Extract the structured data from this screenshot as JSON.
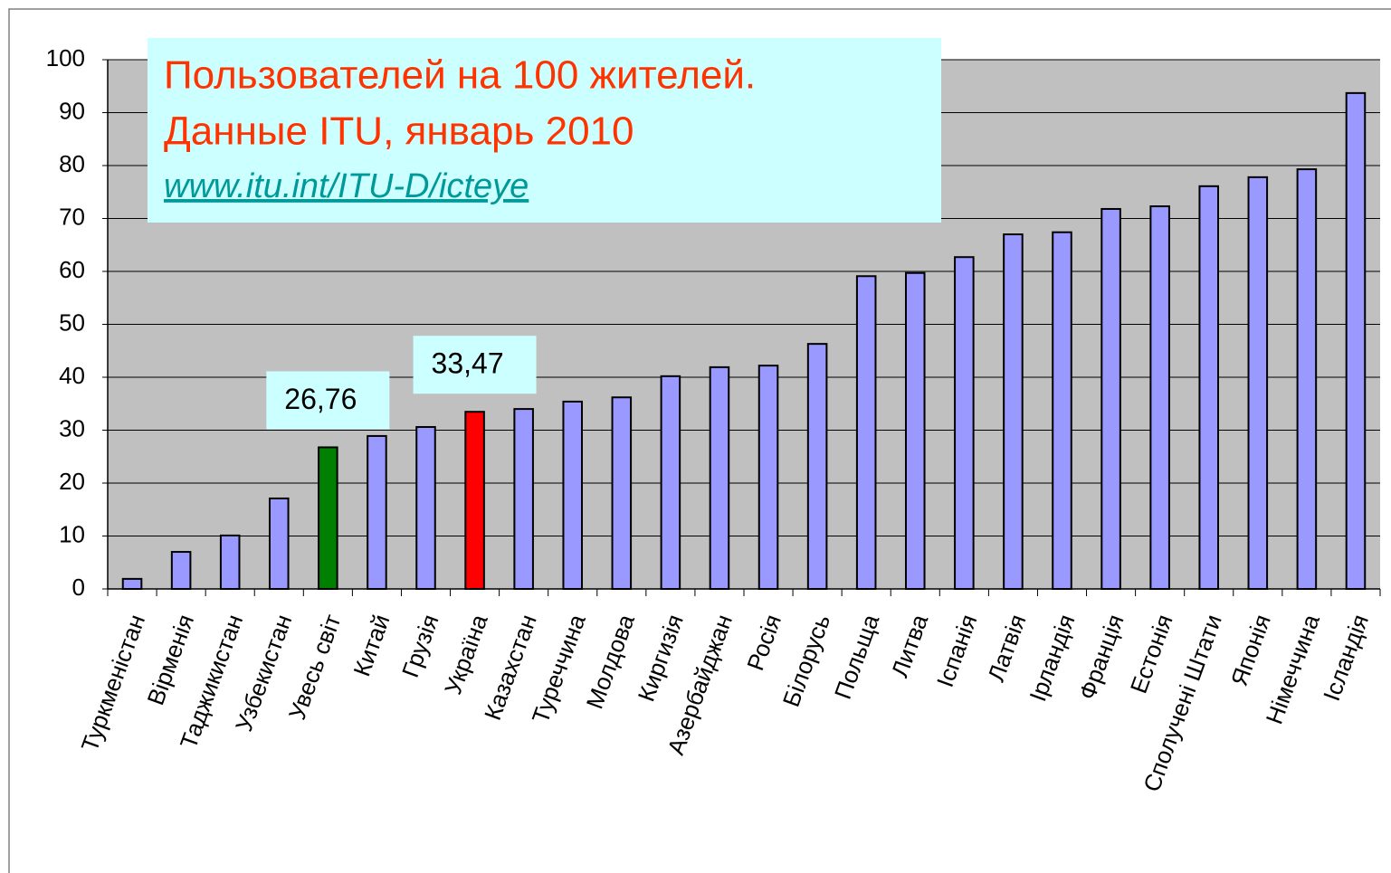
{
  "chart_data": {
    "type": "bar",
    "title": "Пользователей на 100 жителей.",
    "subtitle": "Данные ITU, январь 2010",
    "source": "www.itu.int/ITU-D/icteye",
    "categories": [
      "Туркменістан",
      "Вірменія",
      "Таджикистан",
      "Узбекистан",
      "Увесь світ",
      "Китай",
      "Грузія",
      "Україна",
      "Казахстан",
      "Туреччина",
      "Молдова",
      "Киргизія",
      "Азербайджан",
      "Росія",
      "Білорусь",
      "Польща",
      "Литва",
      "Іспанія",
      "Латвія",
      "Ірландія",
      "Франція",
      "Естонія",
      "Сполучені Штати",
      "Японія",
      "Німеччина",
      "Ісландія"
    ],
    "values": [
      1.9,
      7,
      10.1,
      17.1,
      26.76,
      28.9,
      30.6,
      33.47,
      34,
      35.4,
      36.2,
      40.2,
      41.9,
      42.2,
      46.3,
      59.1,
      59.7,
      62.7,
      67,
      67.4,
      71.8,
      72.3,
      76.1,
      77.8,
      79.3,
      93.7
    ],
    "value_labels": [
      null,
      null,
      null,
      null,
      "26,76",
      null,
      null,
      "33,47",
      null,
      null,
      null,
      null,
      null,
      null,
      null,
      null,
      null,
      null,
      null,
      null,
      null,
      null,
      null,
      null,
      null,
      null
    ],
    "color": "#9999ff",
    "colors": [
      "#9999ff",
      "#9999ff",
      "#9999ff",
      "#9999ff",
      "#008000",
      "#9999ff",
      "#9999ff",
      "#ff0000",
      "#9999ff",
      "#9999ff",
      "#9999ff",
      "#9999ff",
      "#9999ff",
      "#9999ff",
      "#9999ff",
      "#9999ff",
      "#9999ff",
      "#9999ff",
      "#9999ff",
      "#9999ff",
      "#9999ff",
      "#9999ff",
      "#9999ff",
      "#9999ff",
      "#9999ff",
      "#9999ff"
    ],
    "ylim": [
      0,
      100
    ],
    "yticks": [
      0,
      10,
      20,
      30,
      40,
      50,
      60,
      70,
      80,
      90,
      100
    ],
    "grid": true
  }
}
